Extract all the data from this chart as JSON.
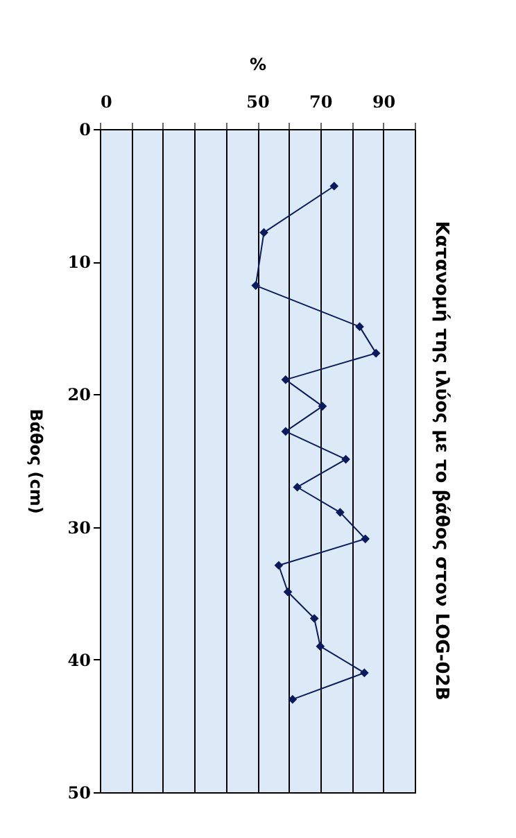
{
  "chart_data": {
    "type": "line",
    "title": "Κατανομή της ιλύος με το βάθος στον LOG-02B",
    "xlabel": "%",
    "ylabel": "Βάθος (cm)",
    "x": [
      74.4,
      52.1,
      49.5,
      82.5,
      87.7,
      59,
      70.7,
      59,
      78.1,
      62.7,
      76.3,
      84.3,
      56.8,
      59.7,
      68.1,
      70,
      84,
      61.2
    ],
    "series": [
      {
        "color": "#0a1a5c",
        "values": [
          4.3,
          7.8,
          11.8,
          14.9,
          16.9,
          18.9,
          20.9,
          22.8,
          24.9,
          27,
          28.9,
          30.9,
          32.9,
          34.9,
          36.9,
          39,
          41,
          43
        ]
      }
    ],
    "xlim": [
      0,
      100
    ],
    "xticks": [
      0,
      {
        "value": 10,
        "label": null
      },
      {
        "value": 20,
        "label": null
      },
      {
        "value": 30,
        "label": null
      },
      {
        "value": 40,
        "label": null
      },
      50,
      {
        "value": 60,
        "label": null
      },
      70,
      {
        "value": 80,
        "label": null
      },
      90,
      {
        "value": 100,
        "label": null
      }
    ],
    "ylim": [
      50,
      0
    ],
    "yticks": [
      0,
      10,
      20,
      30,
      40,
      50
    ],
    "grid": "x",
    "marker": "diamond",
    "line_style": "solid"
  }
}
